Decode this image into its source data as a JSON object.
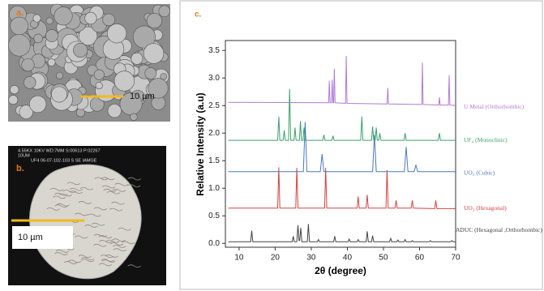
{
  "panels": {
    "a": {
      "label": "a.",
      "scale_bar": "10 µm"
    },
    "b": {
      "label": "b.",
      "scale_bar": "10 µm",
      "header": [
        "4.55KX  10KV  WD:7MM  S:00613  P:02267",
        "10UM",
        "UF4  06-07-102-103  S SE IAMGE"
      ]
    }
  },
  "chart_data": {
    "type": "line",
    "panel_label": "c.",
    "x_label": "2θ (degree)",
    "y_label": "Relative Intensity (a.u)",
    "xlim": [
      6.2,
      70
    ],
    "ylim": [
      -0.07,
      3.68
    ],
    "xticks": [
      10,
      20,
      30,
      40,
      50,
      60,
      70
    ],
    "yticks": [
      {
        "value": 0,
        "label": "0.0"
      },
      0.5,
      {
        "value": 1,
        "label": "1.0"
      },
      1.5,
      {
        "value": 2,
        "label": "2.0"
      },
      2.5,
      {
        "value": 3,
        "label": "3.0"
      },
      3.5
    ],
    "series": [
      {
        "name": "ADUC (Hexagonal ,Orthorhombic)",
        "color": "#444444",
        "x": [
          7,
          13.2,
          13.5,
          13.8,
          24.7,
          25,
          25.3,
          26,
          26.3,
          26.6,
          26.8,
          27.1,
          27.4,
          28.9,
          29.2,
          29.5,
          31.7,
          32,
          32.3,
          36.2,
          36.5,
          36.8,
          40.2,
          40.5,
          40.8,
          42.7,
          43,
          43.3,
          45.2,
          45.5,
          45.8,
          46.7,
          47,
          47.3,
          51.7,
          52,
          52.3,
          53.7,
          54,
          54.3,
          55.7,
          56,
          56.3,
          57.7,
          58,
          58.3,
          62.7,
          63,
          63.3,
          68.7,
          69,
          69.3,
          70
        ],
        "values": [
          0.03,
          0.03,
          0.23,
          0.03,
          0.03,
          0.13,
          0.03,
          0.03,
          0.33,
          0.05,
          0.05,
          0.28,
          0.03,
          0.03,
          0.35,
          0.03,
          0.03,
          0.07,
          0.03,
          0.03,
          0.13,
          0.03,
          0.03,
          0.08,
          0.03,
          0.03,
          0.07,
          0.03,
          0.03,
          0.22,
          0.03,
          0.03,
          0.14,
          0.03,
          0.03,
          0.09,
          0.03,
          0.03,
          0.06,
          0.03,
          0.03,
          0.07,
          0.03,
          0.03,
          0.05,
          0.03,
          0.03,
          0.05,
          0.03,
          0.03,
          0.05,
          0.03,
          0.03
        ]
      },
      {
        "name": "UO₃ (Hexagonal)",
        "color": "#d94040",
        "x": [
          7,
          20.7,
          21,
          21.3,
          25.7,
          26,
          26.3,
          33.7,
          34,
          34.3,
          42.7,
          43,
          43.3,
          45.2,
          45.5,
          45.8,
          50.7,
          51,
          51.3,
          53.2,
          53.5,
          53.8,
          57.7,
          58,
          58.3,
          64.2,
          64.5,
          64.8,
          70
        ],
        "values": [
          0.64,
          0.64,
          1.38,
          0.64,
          0.64,
          1.37,
          0.64,
          0.64,
          1.37,
          0.64,
          0.64,
          0.85,
          0.64,
          0.64,
          0.88,
          0.64,
          0.64,
          1.33,
          0.64,
          0.64,
          0.78,
          0.64,
          0.64,
          0.78,
          0.64,
          0.63,
          0.78,
          0.63,
          0.63
        ]
      },
      {
        "name": "UO₂ (Cubic)",
        "color": "#4a78c4",
        "x": [
          7,
          27.8,
          28.3,
          28.8,
          32.5,
          33,
          33.5,
          47,
          47.5,
          48,
          55.8,
          56.3,
          56.8,
          58.5,
          59,
          59.5,
          70
        ],
        "values": [
          1.3,
          1.3,
          2.2,
          1.3,
          1.3,
          1.62,
          1.3,
          1.3,
          1.97,
          1.3,
          1.3,
          1.75,
          1.3,
          1.3,
          1.42,
          1.3,
          1.3
        ]
      },
      {
        "name": "UF₄ (Monoclinic)",
        "color": "#3aa16a",
        "x": [
          7,
          20.7,
          21,
          21.3,
          22.2,
          22.5,
          22.8,
          23.7,
          24,
          24.3,
          25.2,
          25.5,
          25.8,
          26.7,
          27,
          27.3,
          27.7,
          28,
          28.3,
          33.2,
          33.5,
          33.8,
          35.7,
          36,
          36.3,
          43.7,
          44,
          44.3,
          46.7,
          47,
          47.3,
          47.7,
          48,
          48.3,
          48.7,
          49,
          49.3,
          55.7,
          56,
          56.3,
          65.2,
          65.5,
          65.8,
          70
        ],
        "values": [
          1.87,
          1.87,
          2.3,
          1.87,
          1.87,
          2.05,
          1.87,
          1.87,
          2.8,
          1.87,
          1.87,
          2.1,
          1.87,
          1.87,
          2.22,
          1.87,
          1.87,
          2.1,
          1.87,
          1.87,
          1.97,
          1.87,
          1.87,
          1.95,
          1.87,
          1.87,
          2.3,
          1.87,
          1.87,
          2.12,
          1.87,
          1.87,
          2.1,
          1.87,
          1.87,
          2.0,
          1.87,
          1.87,
          2.0,
          1.87,
          1.87,
          2.0,
          1.87,
          1.87
        ]
      },
      {
        "name": "U Metal (Orthorhombic)",
        "color": "#b07ad6",
        "x": [
          7,
          34.8,
          35,
          35.2,
          35.6,
          35.8,
          36,
          36.2,
          36.4,
          36.6,
          39.5,
          39.7,
          39.9,
          51,
          51.2,
          51.4,
          60.6,
          60.8,
          61,
          65.3,
          65.5,
          65.7,
          68,
          68.2,
          68.4,
          70
        ],
        "values": [
          2.56,
          2.55,
          2.95,
          2.55,
          2.55,
          2.97,
          2.55,
          2.55,
          3.17,
          2.55,
          2.54,
          3.4,
          2.54,
          2.53,
          2.82,
          2.53,
          2.52,
          3.28,
          2.52,
          2.51,
          2.65,
          2.51,
          2.51,
          3.05,
          2.51,
          2.5
        ]
      }
    ]
  }
}
